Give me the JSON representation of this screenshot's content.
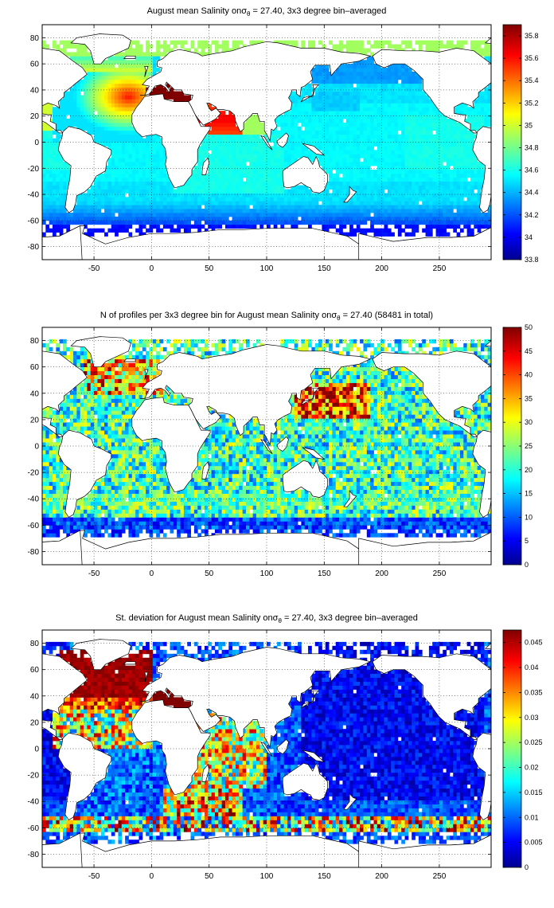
{
  "figure": {
    "colormap": "jet",
    "colormap_stops": [
      "#00008f",
      "#0000ff",
      "#00ffff",
      "#ffff00",
      "#ff0000",
      "#800000"
    ],
    "land_color": "#ffffff",
    "coast_color": "#000000",
    "grid": true,
    "colorbar_placement": "right"
  },
  "chart_data": [
    {
      "type": "heatmap",
      "title_parts": [
        "August mean Salinity on",
        "σ",
        "θ",
        " = 27.40, 3x3 degree bin–averaged"
      ],
      "xlim": [
        -95,
        295
      ],
      "ylim": [
        -90,
        90
      ],
      "x_ticks": [
        -50,
        0,
        50,
        100,
        150,
        200,
        250
      ],
      "y_ticks": [
        -80,
        -60,
        -40,
        -20,
        0,
        20,
        40,
        60,
        80
      ],
      "bin_size_deg": 3,
      "colorbar": {
        "min": 33.8,
        "max": 35.9,
        "ticks": [
          33.8,
          34,
          34.2,
          34.4,
          34.6,
          34.8,
          35,
          35.2,
          35.4,
          35.6,
          35.8
        ]
      },
      "features": {
        "north_atlantic_max": 35.6,
        "mediterranean_outflow": 35.9,
        "arabian_sea_max": 35.6,
        "bay_of_bengal": 35.0,
        "southern_ocean": 34.4,
        "pacific_typical": 34.5,
        "antarctic_margin": 34.1
      }
    },
    {
      "type": "heatmap",
      "title_parts": [
        "N of profiles per 3x3 degree bin for August mean Salinity on",
        "σ",
        "θ",
        " = 27.40 (58481 in total)"
      ],
      "xlim": [
        -95,
        295
      ],
      "ylim": [
        -90,
        90
      ],
      "x_ticks": [
        -50,
        0,
        50,
        100,
        150,
        200,
        250
      ],
      "y_ticks": [
        -80,
        -60,
        -40,
        -20,
        0,
        20,
        40,
        60,
        80
      ],
      "bin_size_deg": 3,
      "total_profiles": 58481,
      "colorbar": {
        "min": 0,
        "max": 50,
        "ticks": [
          0,
          5,
          10,
          15,
          20,
          25,
          30,
          35,
          40,
          45,
          50
        ]
      },
      "features": {
        "kuroshio_region_max": 50,
        "typical_count": 15,
        "southern_ocean_count": 10
      }
    },
    {
      "type": "heatmap",
      "title_parts": [
        "St. deviation for August mean Salinity on",
        "σ",
        "θ",
        " = 27.40, 3x3 degree bin–averaged"
      ],
      "xlim": [
        -95,
        295
      ],
      "ylim": [
        -90,
        90
      ],
      "x_ticks": [
        -50,
        0,
        50,
        100,
        150,
        200,
        250
      ],
      "y_ticks": [
        -80,
        -60,
        -40,
        -20,
        0,
        20,
        40,
        60,
        80
      ],
      "bin_size_deg": 3,
      "colorbar": {
        "min": 0,
        "max": 0.0475,
        "ticks": [
          0,
          0.005,
          0.01,
          0.015,
          0.02,
          0.025,
          0.03,
          0.035,
          0.04,
          0.045
        ]
      },
      "features": {
        "north_atlantic_max": 0.047,
        "pacific_typical": 0.004,
        "southern_ocean_band": 0.03,
        "indian_ocean": 0.02
      }
    }
  ]
}
